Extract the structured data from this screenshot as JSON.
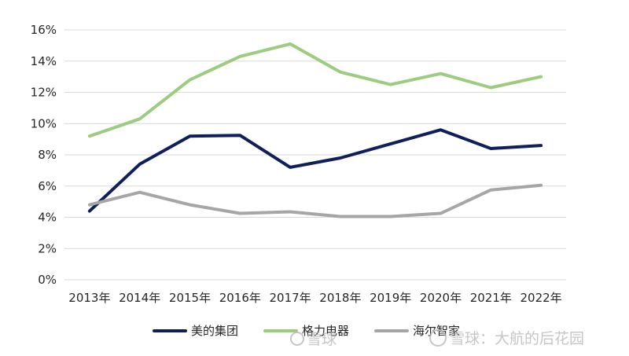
{
  "chart_data": {
    "type": "line",
    "title": "",
    "xlabel": "",
    "ylabel": "",
    "ylim": [
      0,
      16
    ],
    "y_tick_values": [
      0,
      2,
      4,
      6,
      8,
      10,
      12,
      14,
      16
    ],
    "y_tick_labels": [
      "0%",
      "2%",
      "4%",
      "6%",
      "8%",
      "10%",
      "12%",
      "14%",
      "16%"
    ],
    "grid": true,
    "legend_position": "bottom",
    "categories": [
      "2013年",
      "2014年",
      "2015年",
      "2016年",
      "2017年",
      "2018年",
      "2019年",
      "2020年",
      "2021年",
      "2022年"
    ],
    "series": [
      {
        "name": "美的集团",
        "color": "#0e1f5b",
        "values": [
          4.4,
          7.4,
          9.2,
          9.25,
          7.2,
          7.8,
          8.7,
          9.6,
          8.4,
          8.6
        ]
      },
      {
        "name": "格力电器",
        "color": "#9ccc7f",
        "values": [
          9.2,
          10.3,
          12.8,
          14.3,
          15.1,
          13.3,
          12.5,
          13.2,
          12.3,
          13.0
        ]
      },
      {
        "name": "海尔智家",
        "color": "#a6a6a6",
        "values": [
          4.8,
          5.6,
          4.8,
          4.25,
          4.35,
          4.05,
          4.05,
          4.25,
          5.75,
          6.05
        ]
      }
    ]
  },
  "watermark": {
    "text_left": "雪球",
    "text_right": "雪球：大航的后花园",
    "color": "#b8b8b8"
  }
}
